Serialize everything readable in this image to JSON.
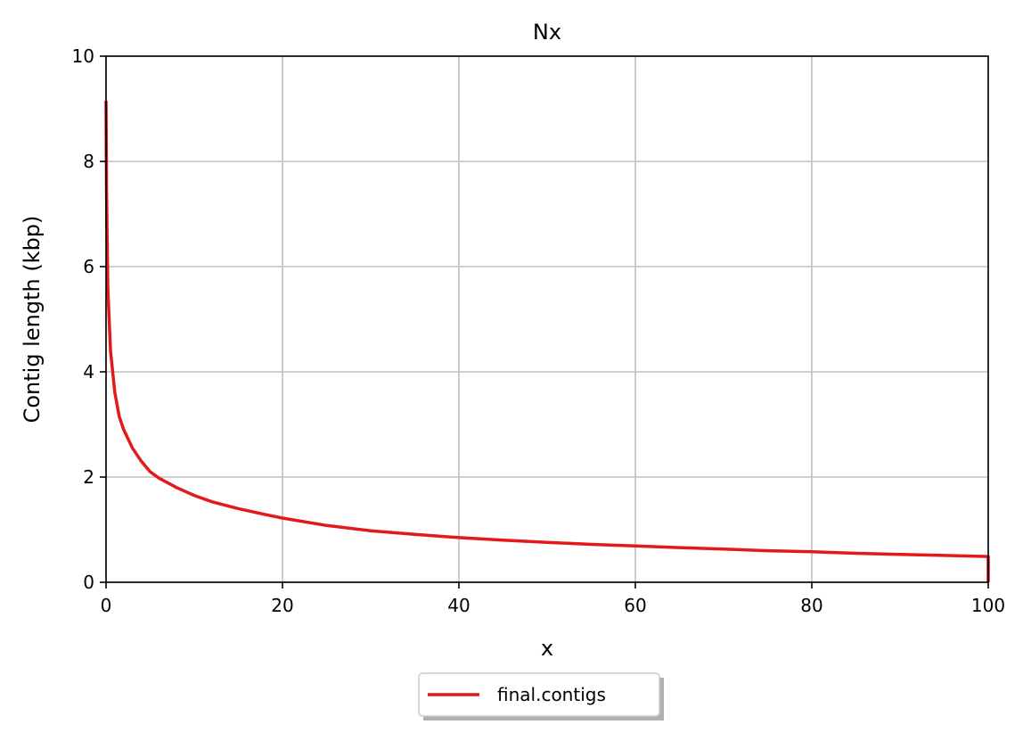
{
  "chart_data": {
    "type": "line",
    "title": "Nx",
    "xlabel": "x",
    "ylabel": "Contig length (kbp)",
    "xlim": [
      0,
      100
    ],
    "ylim": [
      0,
      10
    ],
    "x_ticks": [
      0,
      20,
      40,
      60,
      80,
      100
    ],
    "y_ticks": [
      0,
      2,
      4,
      6,
      8,
      10
    ],
    "grid": true,
    "legend_position": "bottom-center",
    "series": [
      {
        "name": "final.contigs",
        "color": "#e31a1c",
        "x": [
          0,
          0.05,
          0.2,
          0.5,
          1,
          1.5,
          2,
          3,
          4,
          5,
          6,
          8,
          10,
          12,
          15,
          18,
          20,
          25,
          30,
          35,
          40,
          45,
          50,
          55,
          60,
          65,
          70,
          75,
          80,
          85,
          90,
          95,
          100,
          100
        ],
        "y": [
          9.15,
          7.5,
          5.6,
          4.4,
          3.6,
          3.15,
          2.9,
          2.55,
          2.3,
          2.1,
          1.98,
          1.8,
          1.65,
          1.53,
          1.4,
          1.29,
          1.22,
          1.08,
          0.98,
          0.91,
          0.85,
          0.8,
          0.76,
          0.72,
          0.69,
          0.66,
          0.63,
          0.6,
          0.58,
          0.55,
          0.53,
          0.51,
          0.49,
          0
        ]
      }
    ]
  }
}
